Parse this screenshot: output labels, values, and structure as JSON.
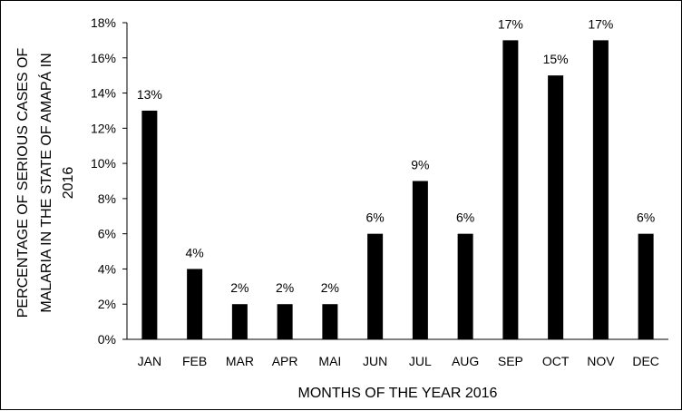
{
  "chart_data": {
    "type": "bar",
    "categories": [
      "JAN",
      "FEB",
      "MAR",
      "APR",
      "MAI",
      "JUN",
      "JUL",
      "AUG",
      "SEP",
      "OCT",
      "NOV",
      "DEC"
    ],
    "values": [
      13,
      4,
      2,
      2,
      2,
      6,
      9,
      6,
      17,
      15,
      17,
      6
    ],
    "data_labels": [
      "13%",
      "4%",
      "2%",
      "2%",
      "2%",
      "6%",
      "9%",
      "6%",
      "17%",
      "15%",
      "17%",
      "6%"
    ],
    "yticks": [
      0,
      2,
      4,
      6,
      8,
      10,
      12,
      14,
      16,
      18
    ],
    "ytick_labels": [
      "0%",
      "2%",
      "4%",
      "6%",
      "8%",
      "10%",
      "12%",
      "14%",
      "16%",
      "18%"
    ],
    "ylim": [
      0,
      18
    ],
    "title": "",
    "xlabel": "MONTHS OF THE YEAR 2016",
    "ylabel_lines": [
      "PERCENTAGE OF SERIOUS CASES OF",
      "MALARIA IN THE STATE OF AMAPÁ IN",
      "2016"
    ],
    "grid": false,
    "bar_color": "#000000"
  }
}
